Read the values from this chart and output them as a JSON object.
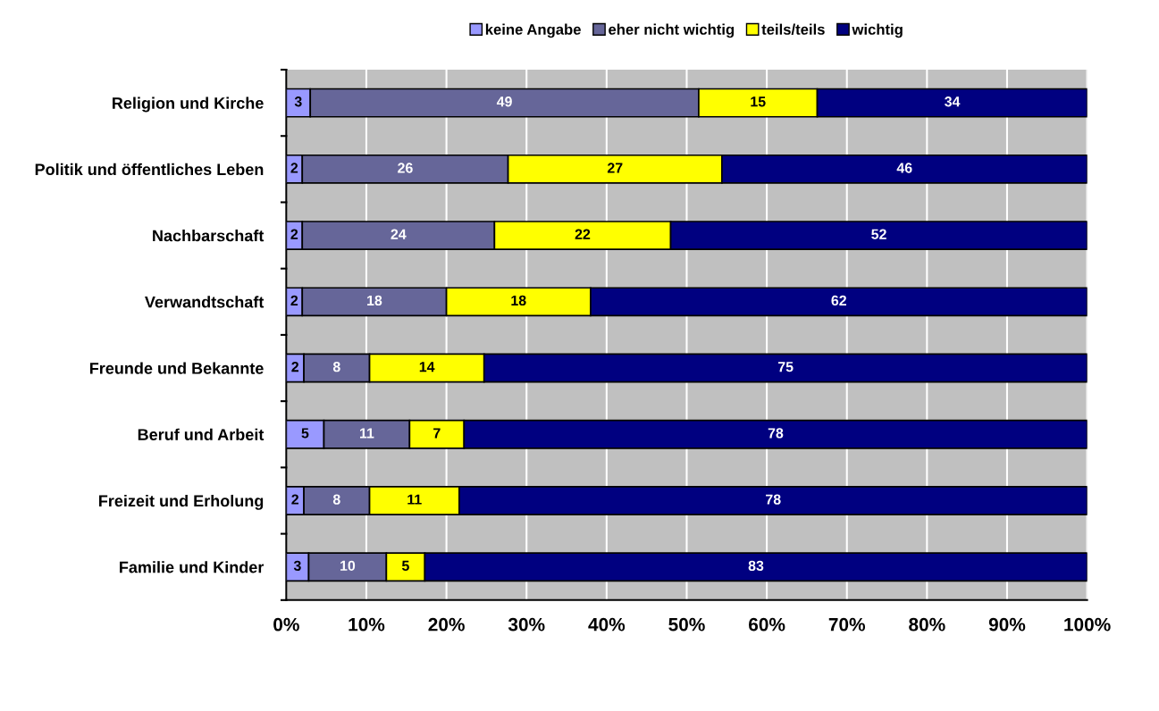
{
  "chart_data": {
    "type": "bar",
    "orientation": "horizontal",
    "stacked": true,
    "categories": [
      "Religion und Kirche",
      "Politik und öffentliches Leben",
      "Nachbarschaft",
      "Verwandtschaft",
      "Freunde und Bekannte",
      "Beruf und Arbeit",
      "Freizeit und Erholung",
      "Familie und Kinder"
    ],
    "series": [
      {
        "name": "keine Angabe",
        "color": "#9999ff",
        "values": [
          3.0,
          2.0,
          2,
          2,
          2.2,
          4.7,
          2.2,
          2.8
        ],
        "value_labels": [
          "3",
          "2",
          "2",
          "2",
          "2",
          "5",
          "2",
          "3"
        ]
      },
      {
        "name": "eher nicht wichtig",
        "color": "#666699",
        "values": [
          48.5,
          25.7,
          24,
          18,
          8.2,
          10.7,
          8.2,
          9.7
        ],
        "value_labels": [
          "49",
          "26",
          "24",
          "18",
          "8",
          "11",
          "8",
          "10"
        ]
      },
      {
        "name": "teils/teils",
        "color": "#ffff00",
        "values": [
          14.8,
          26.7,
          22,
          18,
          14.3,
          6.8,
          11.2,
          4.8
        ],
        "value_labels": [
          "15",
          "27",
          "22",
          "18",
          "14",
          "7",
          "11",
          "5"
        ]
      },
      {
        "name": "wichtig",
        "color": "#000080",
        "values": [
          33.7,
          45.6,
          52,
          62,
          75.3,
          77.8,
          78.4,
          82.7
        ],
        "value_labels": [
          "34",
          "46",
          "52",
          "62",
          "75",
          "78",
          "78",
          "83"
        ]
      }
    ],
    "xlim": [
      0,
      100
    ],
    "xticks": [
      {
        "value": 0,
        "label": "0%"
      },
      {
        "value": 10,
        "label": "10%"
      },
      {
        "value": 20,
        "label": "20%"
      },
      {
        "value": 30,
        "label": "30%"
      },
      {
        "value": 40,
        "label": "40%"
      },
      {
        "value": 50,
        "label": "50%"
      },
      {
        "value": 60,
        "label": "60%"
      },
      {
        "value": 70,
        "label": "70%"
      },
      {
        "value": 80,
        "label": "80%"
      },
      {
        "value": 90,
        "label": "90%"
      },
      {
        "value": 100,
        "label": "100%"
      }
    ],
    "grid": "x",
    "legend": "top"
  }
}
